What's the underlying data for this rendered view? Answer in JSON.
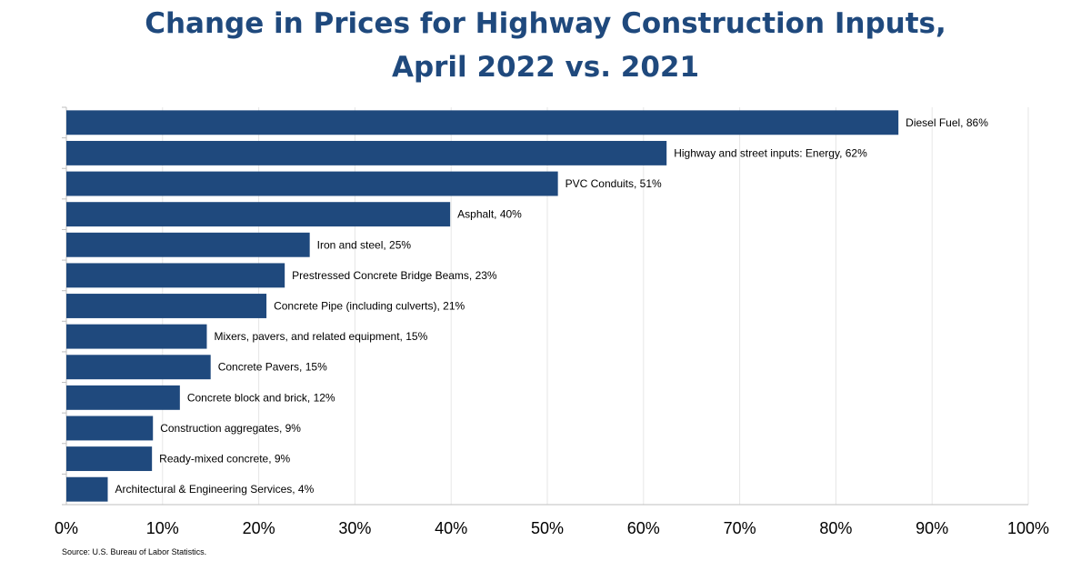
{
  "title_line_1": "Change in Prices for Highway Construction Inputs,",
  "title_line_2": "April 2022 vs. 2021",
  "source": "Source: U.S. Bureau of Labor Statistics.",
  "chart_data": {
    "type": "bar",
    "orientation": "horizontal",
    "title": "Change in Prices for Highway Construction Inputs, April 2022 vs. 2021",
    "xlim": [
      0,
      100
    ],
    "xticks": [
      "0%",
      "10%",
      "20%",
      "30%",
      "40%",
      "50%",
      "60%",
      "70%",
      "80%",
      "90%",
      "100%"
    ],
    "grid": true,
    "bar_color": "#1f497d",
    "categories": [
      "Diesel Fuel, 86%",
      "Highway and street inputs: Energy, 62%",
      "PVC Conduits, 51%",
      "Asphalt, 40%",
      "Iron and steel, 25%",
      "Prestressed Concrete Bridge Beams, 23%",
      "Concrete Pipe (including culverts), 21%",
      "Mixers, pavers, and related equipment, 15%",
      "Concrete Pavers, 15%",
      "Concrete block and brick, 12%",
      "Construction aggregates, 9%",
      "Ready-mixed concrete, 9%",
      "Architectural & Engineering Services, 4%"
    ],
    "values": [
      86.5,
      62.4,
      51.1,
      39.9,
      25.3,
      22.7,
      20.8,
      14.6,
      15.0,
      11.8,
      9.0,
      8.9,
      4.3
    ]
  }
}
